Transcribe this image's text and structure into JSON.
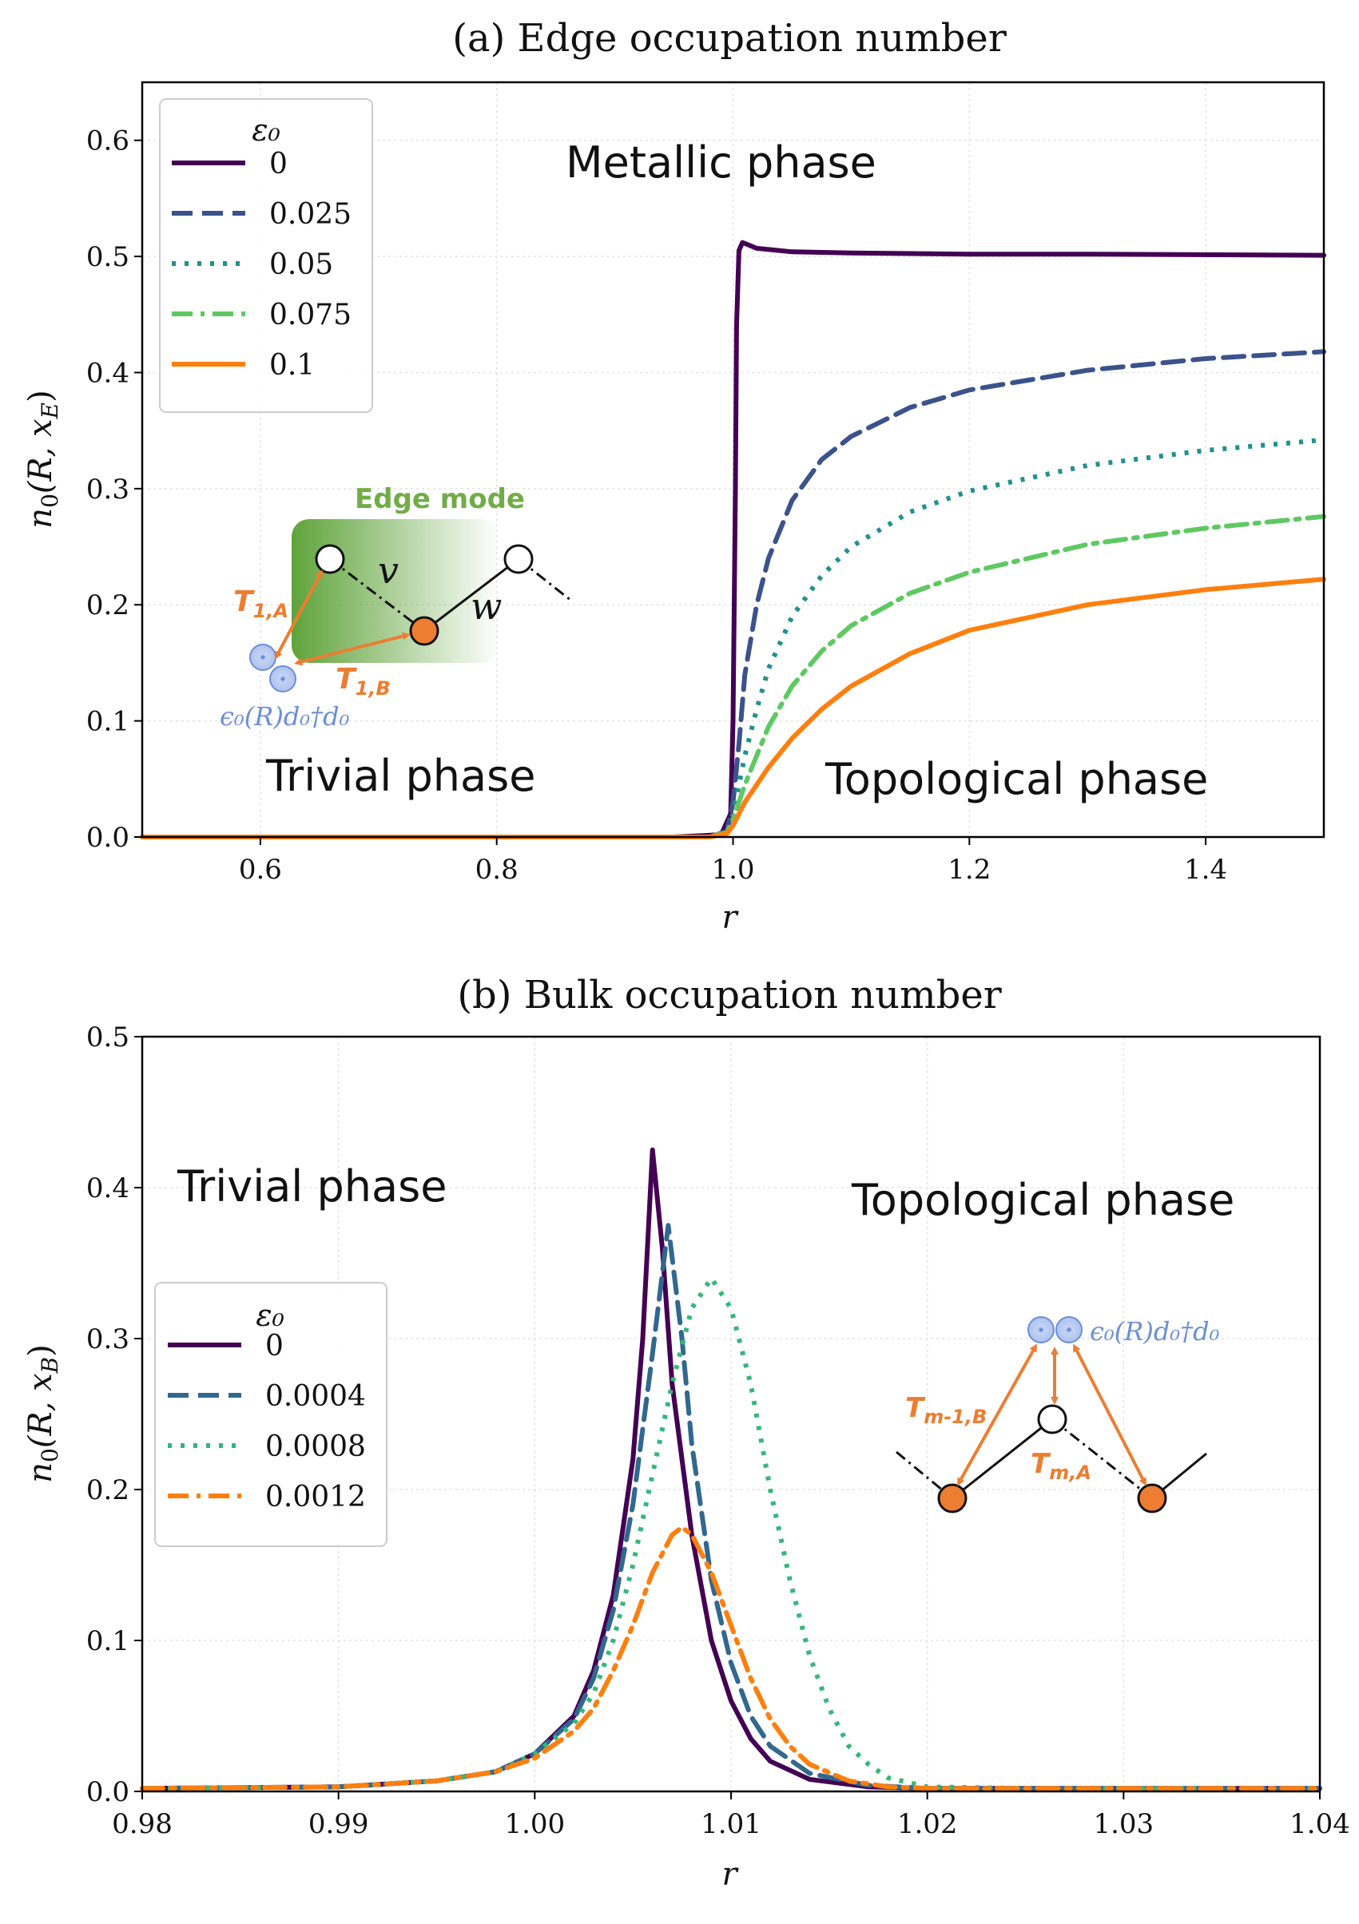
{
  "chart_data": [
    {
      "id": "a",
      "type": "line",
      "title": "(a) Edge occupation number",
      "xlabel": "r",
      "ylabel": "n₀(R, x_E)",
      "ylabel_main": "n",
      "ylabel_sub": "0",
      "ylabel_args": "(R, x",
      "ylabel_args_sub": "E",
      "ylabel_close": ")",
      "xlim": [
        0.5,
        1.5
      ],
      "ylim": [
        0.0,
        0.65
      ],
      "xticks": [
        0.6,
        0.8,
        1.0,
        1.2,
        1.4
      ],
      "xtick_labels": [
        "0.6",
        "0.8",
        "1.0",
        "1.2",
        "1.4"
      ],
      "yticks": [
        0.0,
        0.1,
        0.2,
        0.3,
        0.4,
        0.5,
        0.6
      ],
      "ytick_labels": [
        "0.0",
        "0.1",
        "0.2",
        "0.3",
        "0.4",
        "0.5",
        "0.6"
      ],
      "grid": true,
      "legend": {
        "title": "ε₀",
        "position": "top-left",
        "entries": [
          "0",
          "0.025",
          "0.05",
          "0.075",
          "0.1"
        ]
      },
      "annotations": {
        "metallic": "Metallic phase",
        "trivial": "Trivial phase",
        "topological": "Topological phase"
      },
      "series": [
        {
          "name": "0",
          "color": "#440154",
          "dash": "solid",
          "points": [
            [
              0.5,
              0.0
            ],
            [
              0.95,
              0.0
            ],
            [
              0.99,
              0.002
            ],
            [
              0.998,
              0.02
            ],
            [
              1.0,
              0.1
            ],
            [
              1.002,
              0.3
            ],
            [
              1.003,
              0.44
            ],
            [
              1.005,
              0.505
            ],
            [
              1.008,
              0.512
            ],
            [
              1.02,
              0.507
            ],
            [
              1.05,
              0.504
            ],
            [
              1.1,
              0.503
            ],
            [
              1.2,
              0.502
            ],
            [
              1.3,
              0.502
            ],
            [
              1.5,
              0.501
            ]
          ]
        },
        {
          "name": "0.025",
          "color": "#3b528b",
          "dash": "dashed",
          "points": [
            [
              0.5,
              0.0
            ],
            [
              0.98,
              0.0
            ],
            [
              0.995,
              0.005
            ],
            [
              1.0,
              0.03
            ],
            [
              1.005,
              0.08
            ],
            [
              1.01,
              0.14
            ],
            [
              1.02,
              0.2
            ],
            [
              1.03,
              0.24
            ],
            [
              1.05,
              0.29
            ],
            [
              1.075,
              0.325
            ],
            [
              1.1,
              0.345
            ],
            [
              1.15,
              0.37
            ],
            [
              1.2,
              0.385
            ],
            [
              1.3,
              0.402
            ],
            [
              1.4,
              0.412
            ],
            [
              1.5,
              0.418
            ]
          ]
        },
        {
          "name": "0.05",
          "color": "#21918c",
          "dash": "dotted",
          "points": [
            [
              0.5,
              0.0
            ],
            [
              0.98,
              0.0
            ],
            [
              0.995,
              0.005
            ],
            [
              1.0,
              0.02
            ],
            [
              1.01,
              0.07
            ],
            [
              1.02,
              0.11
            ],
            [
              1.03,
              0.145
            ],
            [
              1.05,
              0.19
            ],
            [
              1.075,
              0.225
            ],
            [
              1.1,
              0.25
            ],
            [
              1.15,
              0.28
            ],
            [
              1.2,
              0.298
            ],
            [
              1.3,
              0.32
            ],
            [
              1.4,
              0.333
            ],
            [
              1.5,
              0.342
            ]
          ]
        },
        {
          "name": "0.075",
          "color": "#5ec962",
          "dash": "dashdot",
          "points": [
            [
              0.5,
              0.0
            ],
            [
              0.98,
              0.0
            ],
            [
              0.995,
              0.004
            ],
            [
              1.0,
              0.015
            ],
            [
              1.01,
              0.045
            ],
            [
              1.02,
              0.07
            ],
            [
              1.03,
              0.095
            ],
            [
              1.05,
              0.13
            ],
            [
              1.075,
              0.16
            ],
            [
              1.1,
              0.182
            ],
            [
              1.15,
              0.21
            ],
            [
              1.2,
              0.228
            ],
            [
              1.3,
              0.252
            ],
            [
              1.4,
              0.266
            ],
            [
              1.5,
              0.276
            ]
          ]
        },
        {
          "name": "0.1",
          "color": "#ff7f0e",
          "dash": "solid",
          "points": [
            [
              0.5,
              0.0
            ],
            [
              0.98,
              0.0
            ],
            [
              0.995,
              0.003
            ],
            [
              1.0,
              0.01
            ],
            [
              1.01,
              0.03
            ],
            [
              1.02,
              0.045
            ],
            [
              1.03,
              0.06
            ],
            [
              1.05,
              0.085
            ],
            [
              1.075,
              0.11
            ],
            [
              1.1,
              0.13
            ],
            [
              1.15,
              0.158
            ],
            [
              1.2,
              0.178
            ],
            [
              1.3,
              0.2
            ],
            [
              1.4,
              0.213
            ],
            [
              1.5,
              0.222
            ]
          ]
        }
      ]
    },
    {
      "id": "b",
      "type": "line",
      "title": "(b) Bulk occupation number",
      "xlabel": "r",
      "ylabel": "n₀(R, x_B)",
      "ylabel_main": "n",
      "ylabel_sub": "0",
      "ylabel_args": "(R, x",
      "ylabel_args_sub": "B",
      "ylabel_close": ")",
      "xlim": [
        0.98,
        1.04
      ],
      "ylim": [
        0.0,
        0.5
      ],
      "xticks": [
        0.98,
        0.99,
        1.0,
        1.01,
        1.02,
        1.03,
        1.04
      ],
      "xtick_labels": [
        "0.98",
        "0.99",
        "1.00",
        "1.01",
        "1.02",
        "1.03",
        "1.04"
      ],
      "yticks": [
        0.0,
        0.1,
        0.2,
        0.3,
        0.4,
        0.5
      ],
      "ytick_labels": [
        "0.0",
        "0.1",
        "0.2",
        "0.3",
        "0.4",
        "0.5"
      ],
      "grid": true,
      "legend": {
        "title": "ε₀",
        "position": "center-left",
        "entries": [
          "0",
          "0.0004",
          "0.0008",
          "0.0012"
        ]
      },
      "annotations": {
        "trivial": "Trivial phase",
        "topological": "Topological phase"
      },
      "series": [
        {
          "name": "0",
          "color": "#440154",
          "dash": "solid",
          "points": [
            [
              0.98,
              0.002
            ],
            [
              0.99,
              0.003
            ],
            [
              0.995,
              0.007
            ],
            [
              0.998,
              0.013
            ],
            [
              1.0,
              0.025
            ],
            [
              1.002,
              0.05
            ],
            [
              1.003,
              0.08
            ],
            [
              1.004,
              0.13
            ],
            [
              1.005,
              0.22
            ],
            [
              1.0055,
              0.3
            ],
            [
              1.006,
              0.425
            ],
            [
              1.0065,
              0.36
            ],
            [
              1.007,
              0.27
            ],
            [
              1.008,
              0.17
            ],
            [
              1.009,
              0.1
            ],
            [
              1.01,
              0.06
            ],
            [
              1.011,
              0.035
            ],
            [
              1.012,
              0.02
            ],
            [
              1.014,
              0.008
            ],
            [
              1.017,
              0.003
            ],
            [
              1.02,
              0.002
            ],
            [
              1.04,
              0.002
            ]
          ]
        },
        {
          "name": "0.0004",
          "color": "#31688e",
          "dash": "dashed",
          "points": [
            [
              0.98,
              0.002
            ],
            [
              0.99,
              0.003
            ],
            [
              0.995,
              0.007
            ],
            [
              0.998,
              0.013
            ],
            [
              1.0,
              0.025
            ],
            [
              1.002,
              0.048
            ],
            [
              1.003,
              0.075
            ],
            [
              1.004,
              0.12
            ],
            [
              1.005,
              0.19
            ],
            [
              1.006,
              0.29
            ],
            [
              1.0068,
              0.375
            ],
            [
              1.0075,
              0.3
            ],
            [
              1.008,
              0.23
            ],
            [
              1.009,
              0.14
            ],
            [
              1.01,
              0.085
            ],
            [
              1.011,
              0.05
            ],
            [
              1.012,
              0.03
            ],
            [
              1.014,
              0.012
            ],
            [
              1.017,
              0.004
            ],
            [
              1.02,
              0.002
            ],
            [
              1.04,
              0.002
            ]
          ]
        },
        {
          "name": "0.0008",
          "color": "#35b779",
          "dash": "dotted",
          "points": [
            [
              0.98,
              0.002
            ],
            [
              0.99,
              0.003
            ],
            [
              0.995,
              0.007
            ],
            [
              0.998,
              0.013
            ],
            [
              1.0,
              0.025
            ],
            [
              1.002,
              0.045
            ],
            [
              1.003,
              0.065
            ],
            [
              1.004,
              0.1
            ],
            [
              1.005,
              0.15
            ],
            [
              1.006,
              0.21
            ],
            [
              1.007,
              0.27
            ],
            [
              1.008,
              0.32
            ],
            [
              1.009,
              0.34
            ],
            [
              1.01,
              0.32
            ],
            [
              1.011,
              0.27
            ],
            [
              1.012,
              0.2
            ],
            [
              1.013,
              0.14
            ],
            [
              1.014,
              0.09
            ],
            [
              1.015,
              0.055
            ],
            [
              1.016,
              0.03
            ],
            [
              1.017,
              0.018
            ],
            [
              1.018,
              0.009
            ],
            [
              1.02,
              0.003
            ],
            [
              1.025,
              0.002
            ],
            [
              1.04,
              0.002
            ]
          ]
        },
        {
          "name": "0.0012",
          "color": "#ff7f0e",
          "dash": "dashdot",
          "points": [
            [
              0.98,
              0.002
            ],
            [
              0.99,
              0.003
            ],
            [
              0.995,
              0.007
            ],
            [
              0.998,
              0.013
            ],
            [
              1.0,
              0.022
            ],
            [
              1.002,
              0.04
            ],
            [
              1.003,
              0.055
            ],
            [
              1.004,
              0.08
            ],
            [
              1.005,
              0.11
            ],
            [
              1.006,
              0.145
            ],
            [
              1.007,
              0.17
            ],
            [
              1.0075,
              0.175
            ],
            [
              1.008,
              0.17
            ],
            [
              1.009,
              0.145
            ],
            [
              1.01,
              0.11
            ],
            [
              1.011,
              0.075
            ],
            [
              1.012,
              0.048
            ],
            [
              1.013,
              0.03
            ],
            [
              1.014,
              0.018
            ],
            [
              1.016,
              0.007
            ],
            [
              1.018,
              0.003
            ],
            [
              1.02,
              0.002
            ],
            [
              1.04,
              0.002
            ]
          ]
        }
      ]
    }
  ],
  "insets": {
    "a": {
      "edge_mode_label": "Edge mode",
      "v_label": "v",
      "w_label": "w",
      "t1a": "T",
      "t1a_sub": "1,A",
      "t1b": "T",
      "t1b_sub": "1,B",
      "eps_term": "ϵ₀(R)d₀†d₀",
      "colors": {
        "orange": "#ed7d31",
        "green": "#70ad47",
        "blue": "#6a8fd8"
      }
    },
    "b": {
      "eps_term": "ϵ₀(R)d₀†d₀",
      "tm1b": "T",
      "tm1b_sub": "m-1,B",
      "tma": "T",
      "tma_sub": "m,A",
      "colors": {
        "orange": "#ed7d31",
        "blue": "#6a8fd8"
      }
    }
  }
}
